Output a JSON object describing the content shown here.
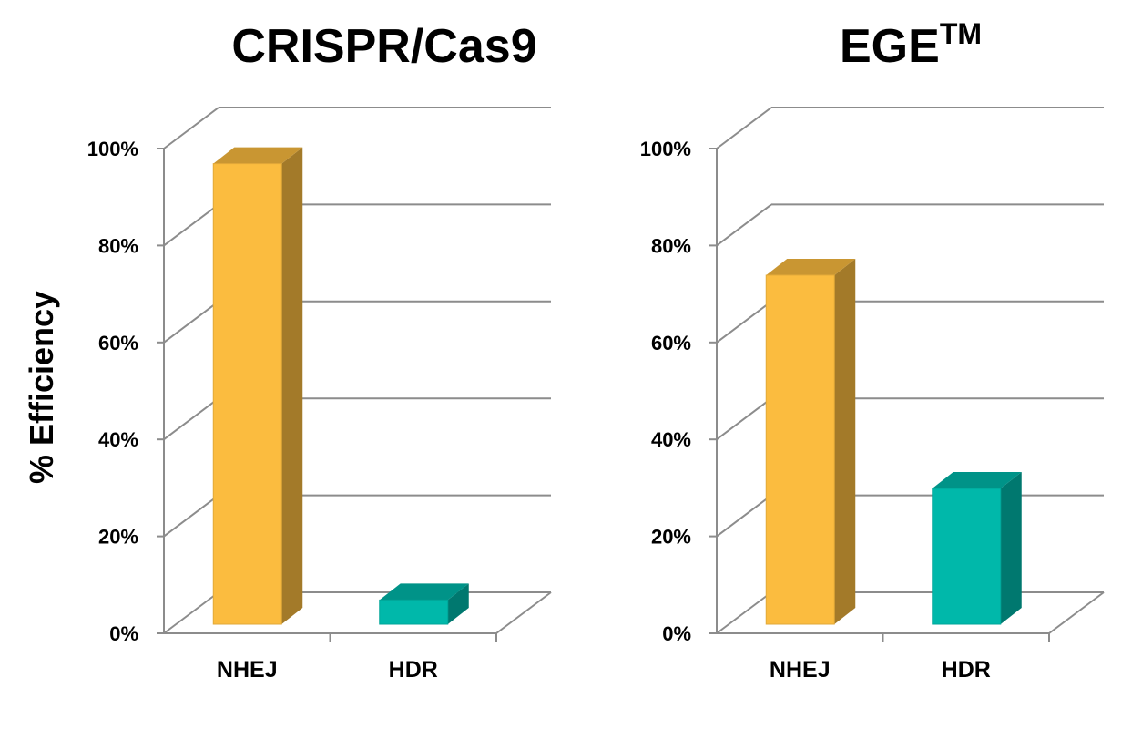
{
  "chart_data": [
    {
      "type": "bar",
      "title": "CRISPR/Cas9",
      "title_sup": "",
      "ylabel": "% Efficiency",
      "xlabel": "",
      "categories": [
        "NHEJ",
        "HDR"
      ],
      "values": [
        95,
        5
      ],
      "colors": [
        "#FBBC3F",
        "#00B8AA"
      ],
      "ylim": [
        0,
        100
      ],
      "yticks": [
        "0%",
        "20%",
        "40%",
        "60%",
        "80%",
        "100%"
      ],
      "grid": true,
      "style": "3d"
    },
    {
      "type": "bar",
      "title": "EGE",
      "title_sup": "TM",
      "ylabel": "",
      "xlabel": "",
      "categories": [
        "NHEJ",
        "HDR"
      ],
      "values": [
        72,
        28
      ],
      "colors": [
        "#FBBC3F",
        "#00B8AA"
      ],
      "ylim": [
        0,
        100
      ],
      "yticks": [
        "0%",
        "20%",
        "40%",
        "60%",
        "80%",
        "100%"
      ],
      "grid": true,
      "style": "3d"
    }
  ]
}
